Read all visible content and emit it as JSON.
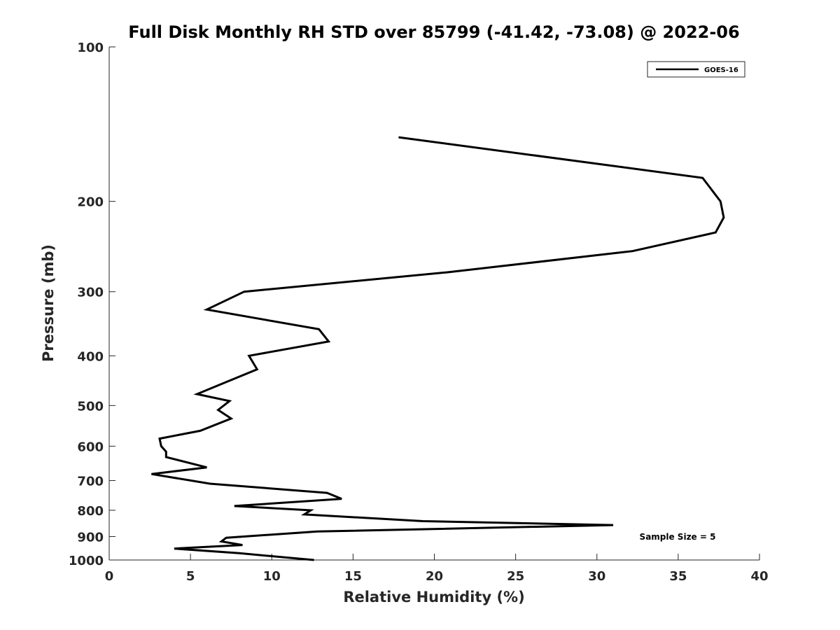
{
  "chart_data": {
    "type": "line",
    "title": "Full Disk Monthly RH STD over 85799 (-41.42, -73.08) @ 2022-06",
    "xlabel": "Relative Humidity (%)",
    "ylabel": "Pressure (mb)",
    "xlim": [
      0,
      40
    ],
    "ylim": [
      100,
      1000
    ],
    "y_scale": "log",
    "y_reversed": true,
    "x_ticks": [
      0,
      5,
      10,
      15,
      20,
      25,
      30,
      35,
      40
    ],
    "x_tick_labels": [
      "0",
      "5",
      "10",
      "15",
      "20",
      "25",
      "30",
      "35",
      "40"
    ],
    "y_ticks": [
      100,
      200,
      300,
      400,
      500,
      600,
      700,
      800,
      900,
      1000
    ],
    "y_tick_labels": [
      "100",
      "200",
      "300",
      "400",
      "500",
      "600",
      "700",
      "800",
      "900",
      "1000"
    ],
    "grid": false,
    "legend_position": "top-right",
    "annotation": "Sample Size = 5",
    "series": [
      {
        "name": "GOES-16",
        "color": "#000000",
        "points": [
          [
            17.8,
            150
          ],
          [
            36.5,
            180
          ],
          [
            37.6,
            200
          ],
          [
            37.8,
            215
          ],
          [
            37.3,
            230
          ],
          [
            32.2,
            250
          ],
          [
            20.8,
            275
          ],
          [
            8.3,
            300
          ],
          [
            6.0,
            325
          ],
          [
            12.9,
            355
          ],
          [
            13.5,
            375
          ],
          [
            8.6,
            400
          ],
          [
            9.1,
            425
          ],
          [
            7.2,
            450
          ],
          [
            5.4,
            475
          ],
          [
            7.4,
            490
          ],
          [
            6.7,
            510
          ],
          [
            7.5,
            530
          ],
          [
            5.6,
            560
          ],
          [
            3.1,
            580
          ],
          [
            3.2,
            600
          ],
          [
            3.5,
            615
          ],
          [
            3.5,
            630
          ],
          [
            6.0,
            660
          ],
          [
            2.6,
            680
          ],
          [
            6.2,
            710
          ],
          [
            13.4,
            740
          ],
          [
            14.3,
            760
          ],
          [
            7.7,
            785
          ],
          [
            12.4,
            800
          ],
          [
            12.0,
            815
          ],
          [
            19.3,
            840
          ],
          [
            31.0,
            855
          ],
          [
            12.8,
            880
          ],
          [
            7.2,
            905
          ],
          [
            6.9,
            920
          ],
          [
            8.2,
            935
          ],
          [
            4.0,
            950
          ],
          [
            8.0,
            970
          ],
          [
            12.6,
            1000
          ]
        ]
      }
    ]
  }
}
